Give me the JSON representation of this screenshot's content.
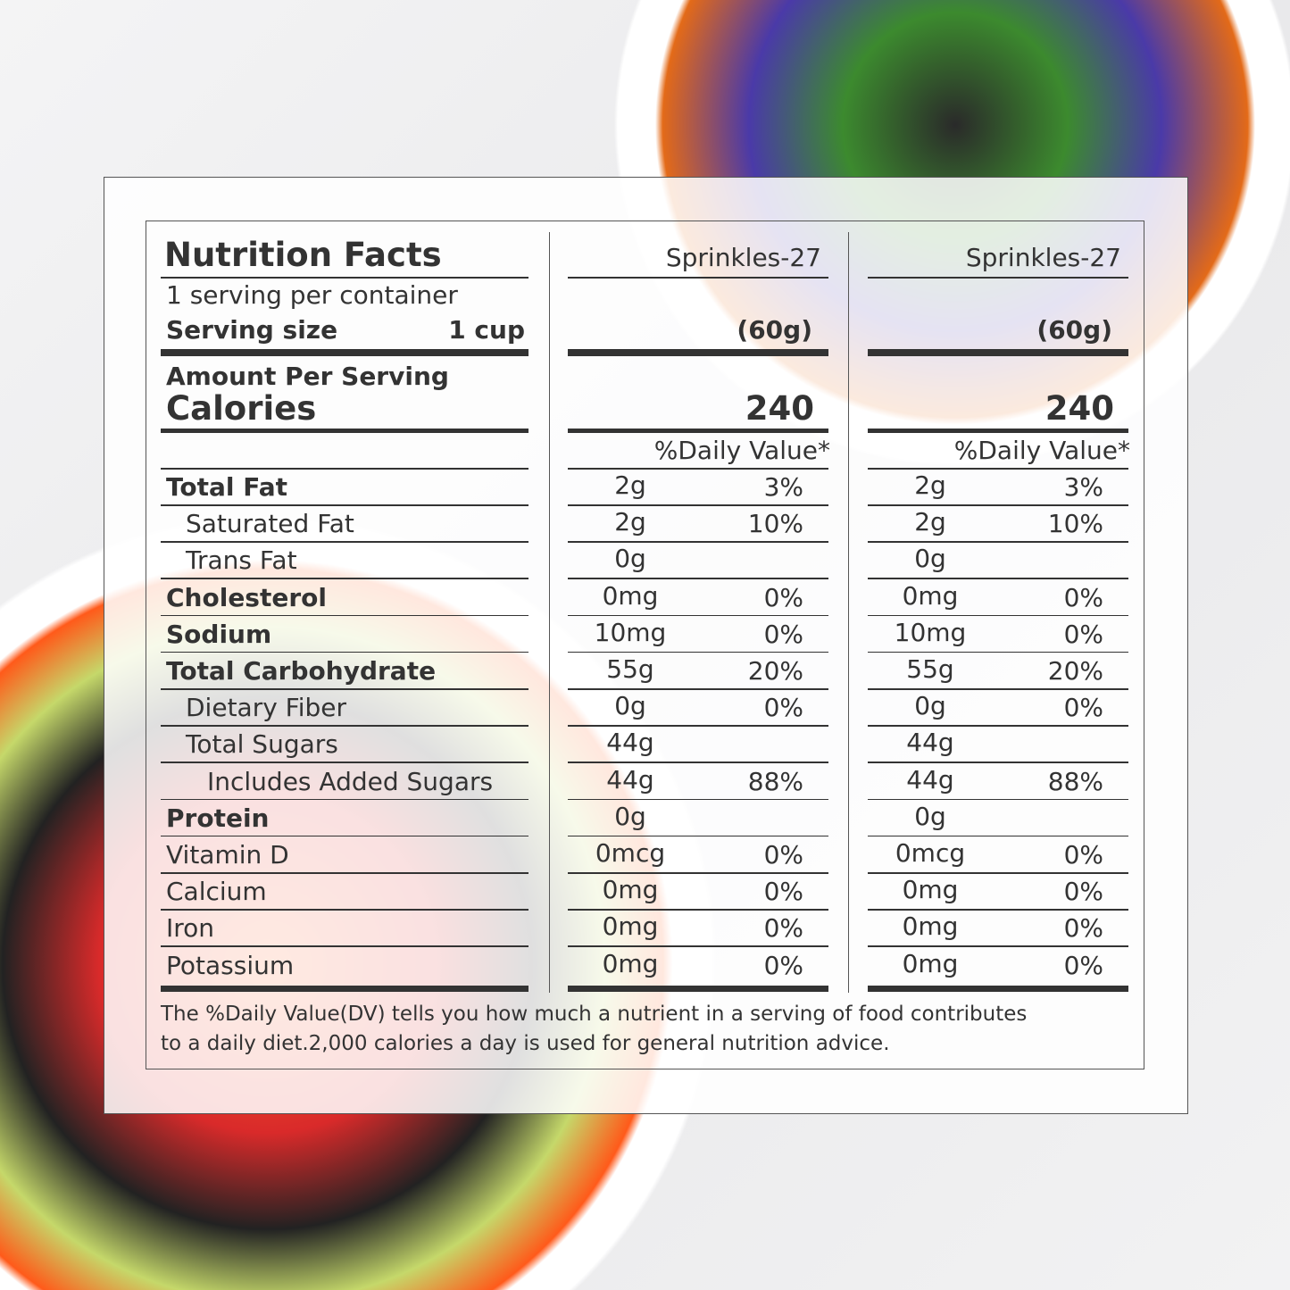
{
  "label": {
    "title": "Nutrition Facts",
    "servings_per_container": "1 serving per container",
    "serving_size_label": "Serving size",
    "serving_size_value": "1 cup",
    "amount_per_serving": "Amount Per Serving",
    "calories_label": "Calories",
    "columns": [
      {
        "product": "Sprinkles-27",
        "serving_weight": "(60g)",
        "calories": "240",
        "dv_header": "%Daily Value*"
      },
      {
        "product": "Sprinkles-27",
        "serving_weight": "(60g)",
        "calories": "240",
        "dv_header": "%Daily Value*"
      }
    ],
    "rows": [
      {
        "name": "Total Fat",
        "indent": 0,
        "bold": true,
        "values": [
          [
            "2g",
            "3%"
          ],
          [
            "2g",
            "3%"
          ]
        ]
      },
      {
        "name": "Saturated  Fat",
        "indent": 1,
        "bold": false,
        "values": [
          [
            "2g",
            "10%"
          ],
          [
            "2g",
            "10%"
          ]
        ]
      },
      {
        "name": "Trans Fat",
        "indent": 1,
        "bold": false,
        "values": [
          [
            "0g",
            ""
          ],
          [
            "0g",
            ""
          ]
        ]
      },
      {
        "name": "Cholesterol",
        "indent": 0,
        "bold": true,
        "values": [
          [
            "0mg",
            "0%"
          ],
          [
            "0mg",
            "0%"
          ]
        ]
      },
      {
        "name": "Sodium",
        "indent": 0,
        "bold": true,
        "values": [
          [
            "10mg",
            "0%"
          ],
          [
            "10mg",
            "0%"
          ]
        ]
      },
      {
        "name": "Total Carbohydrate",
        "indent": 0,
        "bold": true,
        "values": [
          [
            "55g",
            "20%"
          ],
          [
            "55g",
            "20%"
          ]
        ]
      },
      {
        "name": "Dietary Fiber",
        "indent": 1,
        "bold": false,
        "values": [
          [
            "0g",
            "0%"
          ],
          [
            "0g",
            "0%"
          ]
        ]
      },
      {
        "name": "Total Sugars",
        "indent": 1,
        "bold": false,
        "values": [
          [
            "44g",
            ""
          ],
          [
            "44g",
            ""
          ]
        ]
      },
      {
        "name": "Includes Added Sugars",
        "indent": 2,
        "bold": false,
        "values": [
          [
            "44g",
            "88%"
          ],
          [
            "44g",
            "88%"
          ]
        ]
      },
      {
        "name": "Protein",
        "indent": 0,
        "bold": true,
        "values": [
          [
            "0g",
            ""
          ],
          [
            "0g",
            ""
          ]
        ]
      },
      {
        "name": "Vitamin D",
        "indent": 0,
        "bold": false,
        "values": [
          [
            "0mcg",
            "0%"
          ],
          [
            "0mcg",
            "0%"
          ]
        ]
      },
      {
        "name": "Calcium",
        "indent": 0,
        "bold": false,
        "values": [
          [
            "0mg",
            "0%"
          ],
          [
            "0mg",
            "0%"
          ]
        ]
      },
      {
        "name": "Iron",
        "indent": 0,
        "bold": false,
        "values": [
          [
            "0mg",
            "0%"
          ],
          [
            "0mg",
            "0%"
          ]
        ]
      },
      {
        "name": "Potassium",
        "indent": 0,
        "bold": false,
        "values": [
          [
            "0mg",
            "0%"
          ],
          [
            "0mg",
            "0%"
          ]
        ]
      }
    ],
    "footnote_line1": "The %Daily Value(DV) tells you how much a nutrient in a serving of food contributes",
    "footnote_line2": "to a daily diet.2,000 calories a day is used for general nutrition advice."
  }
}
